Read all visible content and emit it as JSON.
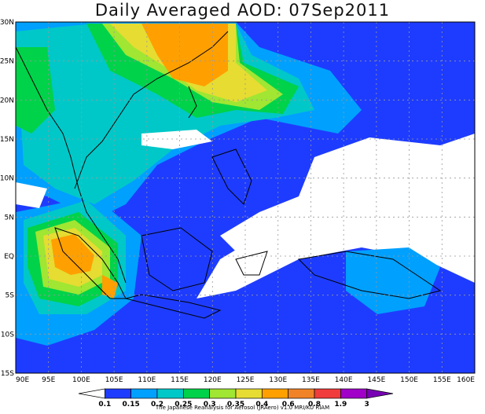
{
  "title": "Daily Averaged AOD: 07Sep2011",
  "lon_labels": [
    "90E",
    "95E",
    "100E",
    "105E",
    "110E",
    "115E",
    "120E",
    "125E",
    "130E",
    "135E",
    "140E",
    "145E",
    "150E",
    "155E",
    "160E"
  ],
  "lat_labels": [
    "30N",
    "25N",
    "20N",
    "15N",
    "10N",
    "5N",
    "EQ",
    "5S",
    "10S",
    "15S"
  ],
  "colorbar": {
    "levels": [
      "0.1",
      "0.15",
      "0.2",
      "0.25",
      "0.3",
      "0.35",
      "0.4",
      "0.6",
      "0.8",
      "1.9",
      "3"
    ],
    "colors": [
      "#ffffff",
      "#1e3cff",
      "#00a0ff",
      "#00c8c8",
      "#00d24a",
      "#a0e632",
      "#e6dc32",
      "#ffa000",
      "#f08228",
      "#f03c3c",
      "#a000c8",
      "#7800b4"
    ]
  },
  "credit": "The Japanese Reanalysis for Aerosol (JRAero) v1.0 MRI/KU RIAM"
}
